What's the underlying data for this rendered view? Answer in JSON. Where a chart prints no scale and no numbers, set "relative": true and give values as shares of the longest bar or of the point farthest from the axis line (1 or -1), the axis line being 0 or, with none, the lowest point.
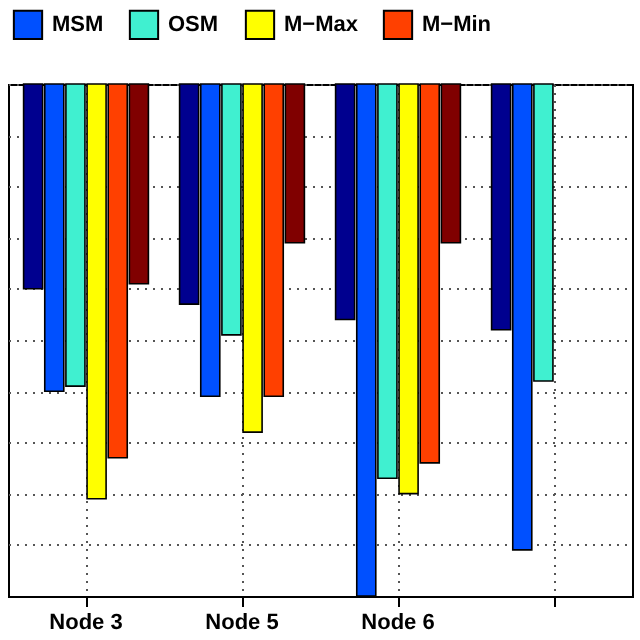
{
  "chart_data": {
    "type": "bar",
    "relative": true,
    "categories": [
      "Node 3",
      "Node 5",
      "Node 6",
      null
    ],
    "series": [
      {
        "color": "#00008f",
        "values": [
          -0.4,
          -0.43,
          -0.46,
          -0.48
        ]
      },
      {
        "name": "MSM",
        "color": "#0050ff",
        "values": [
          -0.6,
          -0.61,
          -1,
          -0.91
        ]
      },
      {
        "name": "OSM",
        "color": "#40f0d0",
        "values": [
          -0.59,
          -0.49,
          -0.77,
          -0.58
        ]
      },
      {
        "name": "M−Max",
        "color": "#ffff00",
        "values": [
          -0.81,
          -0.68,
          -0.8,
          null
        ]
      },
      {
        "name": "M−Min",
        "color": "#ff4000",
        "values": [
          -0.73,
          -0.61,
          -0.74,
          null
        ]
      },
      {
        "color": "#800000",
        "values": [
          -0.39,
          -0.31,
          -0.31,
          null
        ]
      }
    ],
    "grid": true,
    "legend": "top"
  }
}
